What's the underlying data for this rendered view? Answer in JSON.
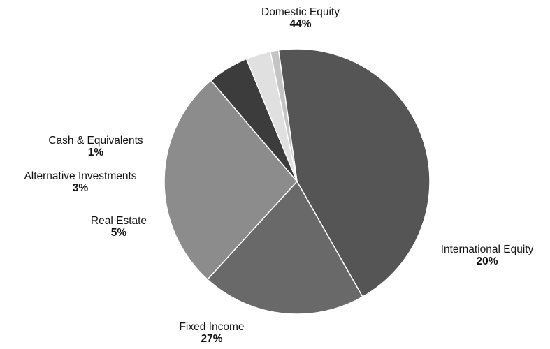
{
  "chart_data": {
    "type": "pie",
    "title": "",
    "slices": [
      {
        "label": "Domestic Equity",
        "value": 44,
        "value_label": "44%",
        "color": "#555555"
      },
      {
        "label": "International Equity",
        "value": 20,
        "value_label": "20%",
        "color": "#696969"
      },
      {
        "label": "Fixed Income",
        "value": 27,
        "value_label": "27%",
        "color": "#8c8c8c"
      },
      {
        "label": "Real Estate",
        "value": 5,
        "value_label": "5%",
        "color": "#3c3c3c"
      },
      {
        "label": "Alternative Investments",
        "value": 3,
        "value_label": "3%",
        "color": "#e0e0e0"
      },
      {
        "label": "Cash & Equivalents",
        "value": 1,
        "value_label": "1%",
        "color": "#c4c4c4"
      }
    ]
  }
}
